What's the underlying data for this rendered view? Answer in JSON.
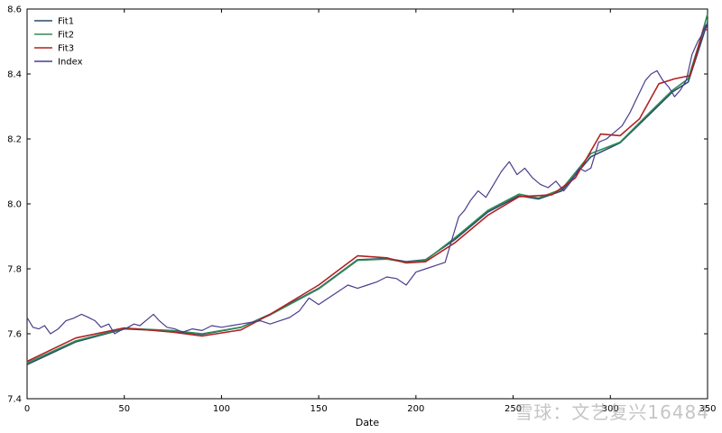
{
  "chart_data": {
    "type": "line",
    "xlabel": "Date",
    "ylabel": "",
    "xlim": [
      0,
      350
    ],
    "ylim": [
      7.4,
      8.6
    ],
    "x_ticks": [
      0,
      50,
      100,
      150,
      200,
      250,
      300,
      350
    ],
    "y_ticks": [
      7.4,
      7.6,
      7.8,
      8.0,
      8.2,
      8.4,
      8.6
    ],
    "x_tick_labels": [
      "0",
      "50",
      "100",
      "150",
      "200",
      "250",
      "300",
      "350"
    ],
    "y_tick_labels": [
      "7.4",
      "7.6",
      "7.8",
      "8.0",
      "8.2",
      "8.4",
      "8.6"
    ],
    "grid": false,
    "legend_position": "top-left",
    "series": [
      {
        "name": "Fit1",
        "color": "#2b4a6a",
        "points": [
          [
            0,
            7.505
          ],
          [
            25,
            7.575
          ],
          [
            50,
            7.615
          ],
          [
            75,
            7.608
          ],
          [
            90,
            7.598
          ],
          [
            110,
            7.62
          ],
          [
            125,
            7.66
          ],
          [
            150,
            7.74
          ],
          [
            170,
            7.828
          ],
          [
            185,
            7.832
          ],
          [
            195,
            7.822
          ],
          [
            205,
            7.828
          ],
          [
            220,
            7.89
          ],
          [
            237,
            7.975
          ],
          [
            253,
            8.025
          ],
          [
            263,
            8.015
          ],
          [
            275,
            8.04
          ],
          [
            290,
            8.145
          ],
          [
            305,
            8.188
          ],
          [
            320,
            8.275
          ],
          [
            332,
            8.345
          ],
          [
            340,
            8.375
          ],
          [
            346,
            8.485
          ],
          [
            350,
            8.56
          ]
        ]
      },
      {
        "name": "Fit2",
        "color": "#2e8b57",
        "points": [
          [
            0,
            7.51
          ],
          [
            25,
            7.578
          ],
          [
            50,
            7.617
          ],
          [
            75,
            7.61
          ],
          [
            90,
            7.6
          ],
          [
            110,
            7.62
          ],
          [
            125,
            7.658
          ],
          [
            150,
            7.738
          ],
          [
            170,
            7.826
          ],
          [
            185,
            7.83
          ],
          [
            195,
            7.82
          ],
          [
            205,
            7.826
          ],
          [
            220,
            7.895
          ],
          [
            237,
            7.98
          ],
          [
            253,
            8.03
          ],
          [
            263,
            8.018
          ],
          [
            275,
            8.045
          ],
          [
            290,
            8.155
          ],
          [
            305,
            8.19
          ],
          [
            320,
            8.28
          ],
          [
            332,
            8.35
          ],
          [
            340,
            8.385
          ],
          [
            346,
            8.5
          ],
          [
            350,
            8.585
          ]
        ]
      },
      {
        "name": "Fit3",
        "color": "#b22222",
        "points": [
          [
            0,
            7.515
          ],
          [
            25,
            7.587
          ],
          [
            50,
            7.618
          ],
          [
            75,
            7.605
          ],
          [
            90,
            7.593
          ],
          [
            110,
            7.612
          ],
          [
            125,
            7.66
          ],
          [
            150,
            7.75
          ],
          [
            170,
            7.84
          ],
          [
            185,
            7.834
          ],
          [
            195,
            7.818
          ],
          [
            205,
            7.822
          ],
          [
            220,
            7.88
          ],
          [
            237,
            7.965
          ],
          [
            253,
            8.022
          ],
          [
            270,
            8.028
          ],
          [
            282,
            8.08
          ],
          [
            295,
            8.215
          ],
          [
            305,
            8.21
          ],
          [
            315,
            8.262
          ],
          [
            325,
            8.37
          ],
          [
            333,
            8.385
          ],
          [
            341,
            8.395
          ],
          [
            348,
            8.54
          ],
          [
            350,
            8.535
          ]
        ]
      },
      {
        "name": "Index",
        "color": "#483d8b",
        "points": [
          [
            0,
            7.65
          ],
          [
            3,
            7.62
          ],
          [
            6,
            7.615
          ],
          [
            9,
            7.625
          ],
          [
            12,
            7.6
          ],
          [
            16,
            7.615
          ],
          [
            20,
            7.64
          ],
          [
            24,
            7.648
          ],
          [
            28,
            7.66
          ],
          [
            31,
            7.652
          ],
          [
            35,
            7.64
          ],
          [
            38,
            7.62
          ],
          [
            42,
            7.63
          ],
          [
            45,
            7.6
          ],
          [
            48,
            7.61
          ],
          [
            52,
            7.62
          ],
          [
            55,
            7.63
          ],
          [
            58,
            7.625
          ],
          [
            62,
            7.645
          ],
          [
            65,
            7.66
          ],
          [
            68,
            7.64
          ],
          [
            72,
            7.62
          ],
          [
            76,
            7.615
          ],
          [
            80,
            7.605
          ],
          [
            85,
            7.615
          ],
          [
            90,
            7.61
          ],
          [
            95,
            7.625
          ],
          [
            100,
            7.62
          ],
          [
            105,
            7.625
          ],
          [
            110,
            7.63
          ],
          [
            115,
            7.635
          ],
          [
            120,
            7.64
          ],
          [
            125,
            7.63
          ],
          [
            130,
            7.64
          ],
          [
            135,
            7.65
          ],
          [
            140,
            7.67
          ],
          [
            145,
            7.71
          ],
          [
            150,
            7.69
          ],
          [
            155,
            7.71
          ],
          [
            160,
            7.73
          ],
          [
            165,
            7.75
          ],
          [
            170,
            7.74
          ],
          [
            175,
            7.75
          ],
          [
            180,
            7.76
          ],
          [
            185,
            7.775
          ],
          [
            190,
            7.77
          ],
          [
            195,
            7.75
          ],
          [
            200,
            7.79
          ],
          [
            205,
            7.8
          ],
          [
            210,
            7.81
          ],
          [
            215,
            7.82
          ],
          [
            219,
            7.9
          ],
          [
            222,
            7.96
          ],
          [
            225,
            7.98
          ],
          [
            228,
            8.01
          ],
          [
            232,
            8.04
          ],
          [
            236,
            8.02
          ],
          [
            240,
            8.06
          ],
          [
            244,
            8.1
          ],
          [
            248,
            8.13
          ],
          [
            252,
            8.09
          ],
          [
            256,
            8.11
          ],
          [
            260,
            8.08
          ],
          [
            264,
            8.06
          ],
          [
            268,
            8.05
          ],
          [
            272,
            8.07
          ],
          [
            276,
            8.04
          ],
          [
            280,
            8.07
          ],
          [
            284,
            8.11
          ],
          [
            287,
            8.1
          ],
          [
            290,
            8.11
          ],
          [
            294,
            8.19
          ],
          [
            298,
            8.2
          ],
          [
            302,
            8.22
          ],
          [
            306,
            8.24
          ],
          [
            310,
            8.28
          ],
          [
            314,
            8.33
          ],
          [
            318,
            8.38
          ],
          [
            321,
            8.4
          ],
          [
            324,
            8.41
          ],
          [
            327,
            8.38
          ],
          [
            330,
            8.36
          ],
          [
            333,
            8.33
          ],
          [
            336,
            8.35
          ],
          [
            339,
            8.38
          ],
          [
            342,
            8.46
          ],
          [
            345,
            8.5
          ],
          [
            347,
            8.52
          ],
          [
            349,
            8.55
          ],
          [
            350,
            8.54
          ]
        ]
      }
    ]
  },
  "legend": [
    {
      "label": "Fit1",
      "color": "#2b4a6a"
    },
    {
      "label": "Fit2",
      "color": "#2e8b57"
    },
    {
      "label": "Fit3",
      "color": "#b22222"
    },
    {
      "label": "Index",
      "color": "#483d8b"
    }
  ],
  "watermark": "雪球：文艺复兴16484"
}
